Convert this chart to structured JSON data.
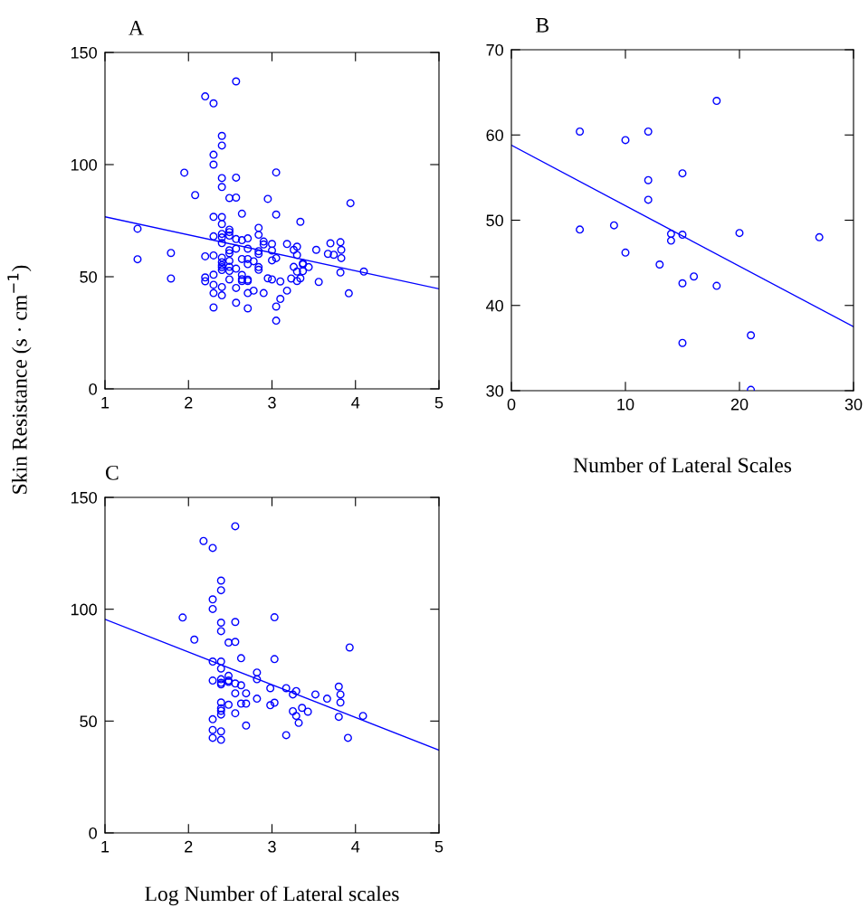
{
  "chart_data": [
    {
      "type": "scatter",
      "title": "A",
      "ylabel": "Skin Resistance (s · cm$^{−1}$)",
      "xlim": [
        1,
        5
      ],
      "ylim": [
        0,
        150
      ],
      "xticks": [
        1,
        2,
        3,
        4,
        5
      ],
      "yticks": [
        0,
        50,
        100,
        150
      ],
      "grid": false,
      "legend": false,
      "series": [
        {
          "marker": "circle",
          "color": "#0000ff",
          "x": [
            1.39,
            1.39,
            1.79,
            1.79,
            1.95,
            2.08,
            2.2,
            2.3,
            2.57,
            2.4,
            2.4,
            2.3,
            2.3,
            2.4,
            2.57,
            2.4,
            2.49,
            2.57,
            2.64,
            2.3,
            2.4,
            2.4,
            2.2,
            2.2,
            2.2,
            2.3,
            2.3,
            2.3,
            2.3,
            2.3,
            2.3,
            2.4,
            2.4,
            2.4,
            2.49,
            2.49,
            2.49,
            2.4,
            2.4,
            2.4,
            2.4,
            2.4,
            2.4,
            2.4,
            2.49,
            2.49,
            2.49,
            2.49,
            2.49,
            2.49,
            2.57,
            2.57,
            2.57,
            2.57,
            2.57,
            2.64,
            2.64,
            2.64,
            2.64,
            2.64,
            2.71,
            2.71,
            2.71,
            2.71,
            2.71,
            2.71,
            2.71,
            2.71,
            2.78,
            2.78,
            2.84,
            2.84,
            2.84,
            2.84,
            2.84,
            2.84,
            2.9,
            2.9,
            2.9,
            2.95,
            2.95,
            3.0,
            3.0,
            3.0,
            3.0,
            3.05,
            3.05,
            3.05,
            3.05,
            3.05,
            3.1,
            3.1,
            3.18,
            3.18,
            3.23,
            3.26,
            3.26,
            3.3,
            3.3,
            3.3,
            3.3,
            3.34,
            3.34,
            3.37,
            3.37,
            3.37,
            3.44,
            3.53,
            3.56,
            3.67,
            3.7,
            3.74,
            3.82,
            3.83,
            3.83,
            3.82,
            3.94,
            3.92,
            4.1
          ],
          "values": [
            71.4,
            57.8,
            60.6,
            49.2,
            96.4,
            86.4,
            130.4,
            127.3,
            137.1,
            112.8,
            108.5,
            104.4,
            100,
            94,
            94.2,
            90,
            85.1,
            85.3,
            78.1,
            76.7,
            76.6,
            73.5,
            59.1,
            49.7,
            48,
            68,
            59.5,
            50.9,
            46.4,
            42.7,
            36.3,
            69.1,
            67.5,
            65,
            71,
            69.9,
            68.3,
            58.5,
            56.5,
            55.1,
            54.2,
            53,
            45.4,
            41.7,
            61.8,
            60.5,
            57.1,
            54.4,
            52.6,
            48.8,
            66.8,
            62.5,
            53.6,
            45,
            38.4,
            66.3,
            57.9,
            50.8,
            48.9,
            48.1,
            67.1,
            62.5,
            57.9,
            55.6,
            48.7,
            48.1,
            42.7,
            35.9,
            56.9,
            43.8,
            71.8,
            68.7,
            61.4,
            60.2,
            54.3,
            53.1,
            65.7,
            64.4,
            42.7,
            84.7,
            49.3,
            64.6,
            61.7,
            57.3,
            48.8,
            96.5,
            77.7,
            58.3,
            36.7,
            30.4,
            47.9,
            40.1,
            64.6,
            43.8,
            49.2,
            62,
            54.4,
            63.4,
            59.7,
            52.3,
            48.1,
            74.5,
            49.3,
            56,
            55.5,
            52.5,
            54.3,
            62,
            47.7,
            60.2,
            64.9,
            59.8,
            65.4,
            62,
            58.3,
            51.9,
            82.8,
            42.6,
            52.3
          ]
        },
        {
          "type": "line",
          "color": "#0000ff",
          "x": [
            1,
            5
          ],
          "values": [
            76.7,
            44.6
          ]
        }
      ]
    },
    {
      "type": "scatter",
      "title": "B",
      "xlabel": "Number of Lateral Scales",
      "xlim": [
        0,
        30
      ],
      "ylim": [
        30,
        70
      ],
      "xticks": [
        0,
        10,
        20,
        30
      ],
      "yticks": [
        30,
        40,
        50,
        60,
        70
      ],
      "grid": false,
      "legend": false,
      "series": [
        {
          "marker": "circle",
          "color": "#0000ff",
          "x": [
            6,
            6,
            9,
            10,
            10,
            12,
            12,
            12,
            13,
            14,
            14,
            15,
            15,
            15,
            15,
            16,
            18,
            18,
            20,
            21,
            21,
            27
          ],
          "values": [
            60.4,
            48.9,
            49.4,
            59.4,
            46.2,
            60.4,
            54.7,
            52.4,
            44.8,
            48.4,
            47.6,
            55.5,
            48.3,
            42.6,
            35.6,
            43.4,
            64.0,
            42.3,
            48.5,
            36.5,
            30.1,
            48.0
          ]
        },
        {
          "type": "line",
          "color": "#0000ff",
          "x": [
            0,
            30
          ],
          "values": [
            58.8,
            37.5
          ]
        }
      ]
    },
    {
      "type": "scatter",
      "title": "C",
      "xlabel": "Log Number of Lateral scales",
      "xlim": [
        1,
        5
      ],
      "ylim": [
        0,
        150
      ],
      "xticks": [
        1,
        2,
        3,
        4,
        5
      ],
      "yticks": [
        0,
        50,
        100,
        150
      ],
      "grid": false,
      "legend": false,
      "series": [
        {
          "marker": "circle",
          "color": "#0000ff",
          "x": [
            2.56,
            2.18,
            2.29,
            2.39,
            2.39,
            2.29,
            2.29,
            1.93,
            2.39,
            2.56,
            2.39,
            2.07,
            2.48,
            2.56,
            2.63,
            2.29,
            2.39,
            2.39,
            2.48,
            2.48,
            2.48,
            2.29,
            2.39,
            2.39,
            2.39,
            2.56,
            2.63,
            2.82,
            2.82,
            2.69,
            2.56,
            2.82,
            2.98,
            2.98,
            2.48,
            2.63,
            2.69,
            2.39,
            2.39,
            2.39,
            2.39,
            2.56,
            2.29,
            2.69,
            2.29,
            2.39,
            2.29,
            2.39,
            3.03,
            3.93,
            3.03,
            3.17,
            3.29,
            3.25,
            3.03,
            3.52,
            3.66,
            3.8,
            3.82,
            3.82,
            3.36,
            3.43,
            3.25,
            3.29,
            3.32,
            3.8,
            4.09,
            3.17,
            3.91
          ],
          "values": [
            137.1,
            130.5,
            127.4,
            112.8,
            108.5,
            104.4,
            100.1,
            96.3,
            94.0,
            94.3,
            90.2,
            86.4,
            85.1,
            85.4,
            78.1,
            76.6,
            76.6,
            73.5,
            70.2,
            68.1,
            67.5,
            68.1,
            68.7,
            67.1,
            66.4,
            66.8,
            66.0,
            71.7,
            68.7,
            62.4,
            62.4,
            60.0,
            64.7,
            57.1,
            57.3,
            57.8,
            57.8,
            58.3,
            55.7,
            54.6,
            52.9,
            53.5,
            50.8,
            48.0,
            46.0,
            45.4,
            42.5,
            41.6,
            96.4,
            82.9,
            77.7,
            64.7,
            63.4,
            61.9,
            58.2,
            61.9,
            60.0,
            65.4,
            61.9,
            58.3,
            55.9,
            54.2,
            54.4,
            52.3,
            49.2,
            51.9,
            52.3,
            43.7,
            42.5
          ]
        },
        {
          "type": "line",
          "color": "#0000ff",
          "x": [
            1,
            5
          ],
          "values": [
            95.5,
            37
          ]
        }
      ]
    }
  ]
}
